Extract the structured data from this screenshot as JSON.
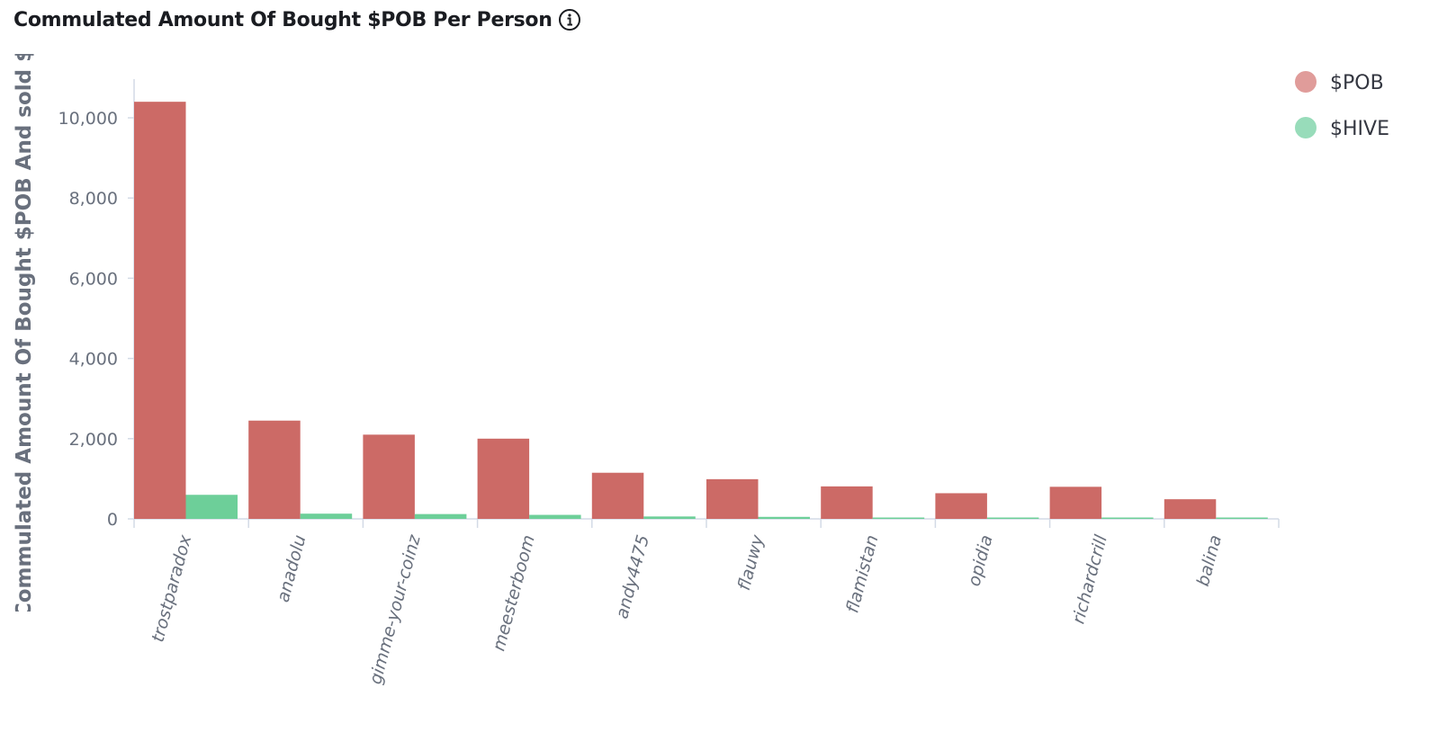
{
  "chart_title": "Commulated Amount Of Bought $POB Per Person",
  "info_icon": "info-circle-icon",
  "chart_data": {
    "type": "bar",
    "title": "Commulated Amount Of Bought $POB Per Person",
    "xlabel": "",
    "ylabel": "Commulated Amount Of Bought $POB And sold $",
    "ylim": [
      0,
      11000
    ],
    "yticks": [
      0,
      2000,
      4000,
      6000,
      8000,
      10000
    ],
    "ytick_labels": [
      "0",
      "2,000",
      "4,000",
      "6,000",
      "8,000",
      "10,000"
    ],
    "categories": [
      "trostparadox",
      "anadolu",
      "gimme-your-coinz",
      "meesterboom",
      "andy4475",
      "flauwy",
      "flamistan",
      "opidia",
      "richardcrill",
      "balina"
    ],
    "series": [
      {
        "name": "$POB",
        "color": "#cc6a66",
        "legend_color": "#e09c9a",
        "values": [
          10400,
          2450,
          2100,
          2000,
          1150,
          990,
          810,
          640,
          800,
          490
        ]
      },
      {
        "name": "$HIVE",
        "color": "#6dcf99",
        "legend_color": "#98dcba",
        "values": [
          600,
          130,
          120,
          100,
          60,
          50,
          30,
          25,
          20,
          10
        ]
      }
    ],
    "legend_position": "top-right",
    "grid": false
  }
}
